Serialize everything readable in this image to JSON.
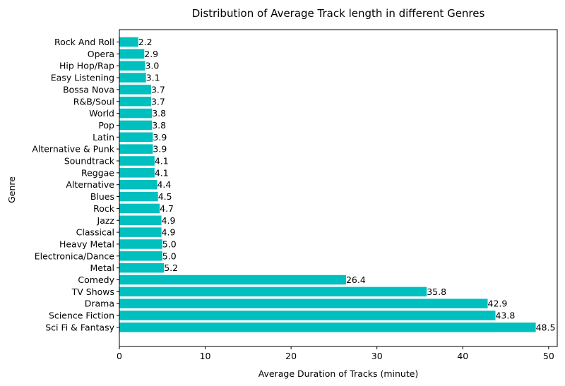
{
  "chart_data": {
    "type": "bar",
    "orientation": "horizontal",
    "title": "Distribution of Average Track length in different Genres",
    "xlabel": "Average Duration of Tracks (minute)",
    "ylabel": "Genre",
    "xlim": [
      0,
      51
    ],
    "xticks": [
      0,
      10,
      20,
      30,
      40,
      50
    ],
    "grid": false,
    "bar_color": "#00BFBF",
    "categories": [
      "Rock And Roll",
      "Opera",
      "Hip Hop/Rap",
      "Easy Listening",
      "Bossa Nova",
      "R&B/Soul",
      "World",
      "Pop",
      "Latin",
      "Alternative & Punk",
      "Soundtrack",
      "Reggae",
      "Alternative",
      "Blues",
      "Rock",
      "Jazz",
      "Classical",
      "Heavy Metal",
      "Electronica/Dance",
      "Metal",
      "Comedy",
      "TV Shows",
      "Drama",
      "Science Fiction",
      "Sci Fi & Fantasy"
    ],
    "values": [
      2.2,
      2.9,
      3.0,
      3.1,
      3.7,
      3.7,
      3.8,
      3.8,
      3.9,
      3.9,
      4.1,
      4.1,
      4.4,
      4.5,
      4.7,
      4.9,
      4.9,
      5.0,
      5.0,
      5.2,
      26.4,
      35.8,
      42.9,
      43.8,
      48.5
    ],
    "data_labels": [
      "2.2",
      "2.9",
      "3.0",
      "3.1",
      "3.7",
      "3.7",
      "3.8",
      "3.8",
      "3.9",
      "3.9",
      "4.1",
      "4.1",
      "4.4",
      "4.5",
      "4.7",
      "4.9",
      "4.9",
      "5.0",
      "5.0",
      "5.2",
      "26.4",
      "35.8",
      "42.9",
      "43.8",
      "48.5"
    ]
  }
}
